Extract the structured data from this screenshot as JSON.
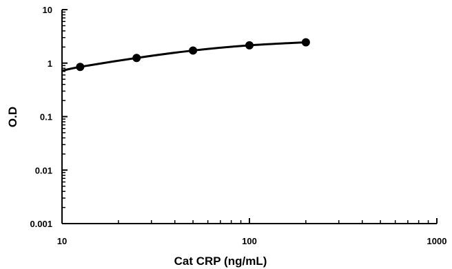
{
  "chart_data": {
    "type": "scatter",
    "title": "",
    "xlabel": "Cat CRP (ng/mL)",
    "ylabel": "O.D",
    "xscale": "log",
    "yscale": "log",
    "xlim": [
      10,
      1000
    ],
    "ylim": [
      0.001,
      10
    ],
    "x_ticks": [
      "10",
      "100",
      "1000"
    ],
    "y_ticks": [
      "10",
      "1",
      "0.1",
      "0.01",
      "0.001"
    ],
    "grid": false,
    "legend": "none",
    "series": [
      {
        "points": [
          {
            "x": 12.5,
            "y": 0.85
          },
          {
            "x": 25,
            "y": 1.25
          },
          {
            "x": 50,
            "y": 1.72
          },
          {
            "x": 100,
            "y": 2.15
          },
          {
            "x": 200,
            "y": 2.45
          }
        ],
        "fit_line": true,
        "fit_start_x": 10,
        "fit_start_y": 0.72,
        "color": "#000000"
      }
    ]
  }
}
